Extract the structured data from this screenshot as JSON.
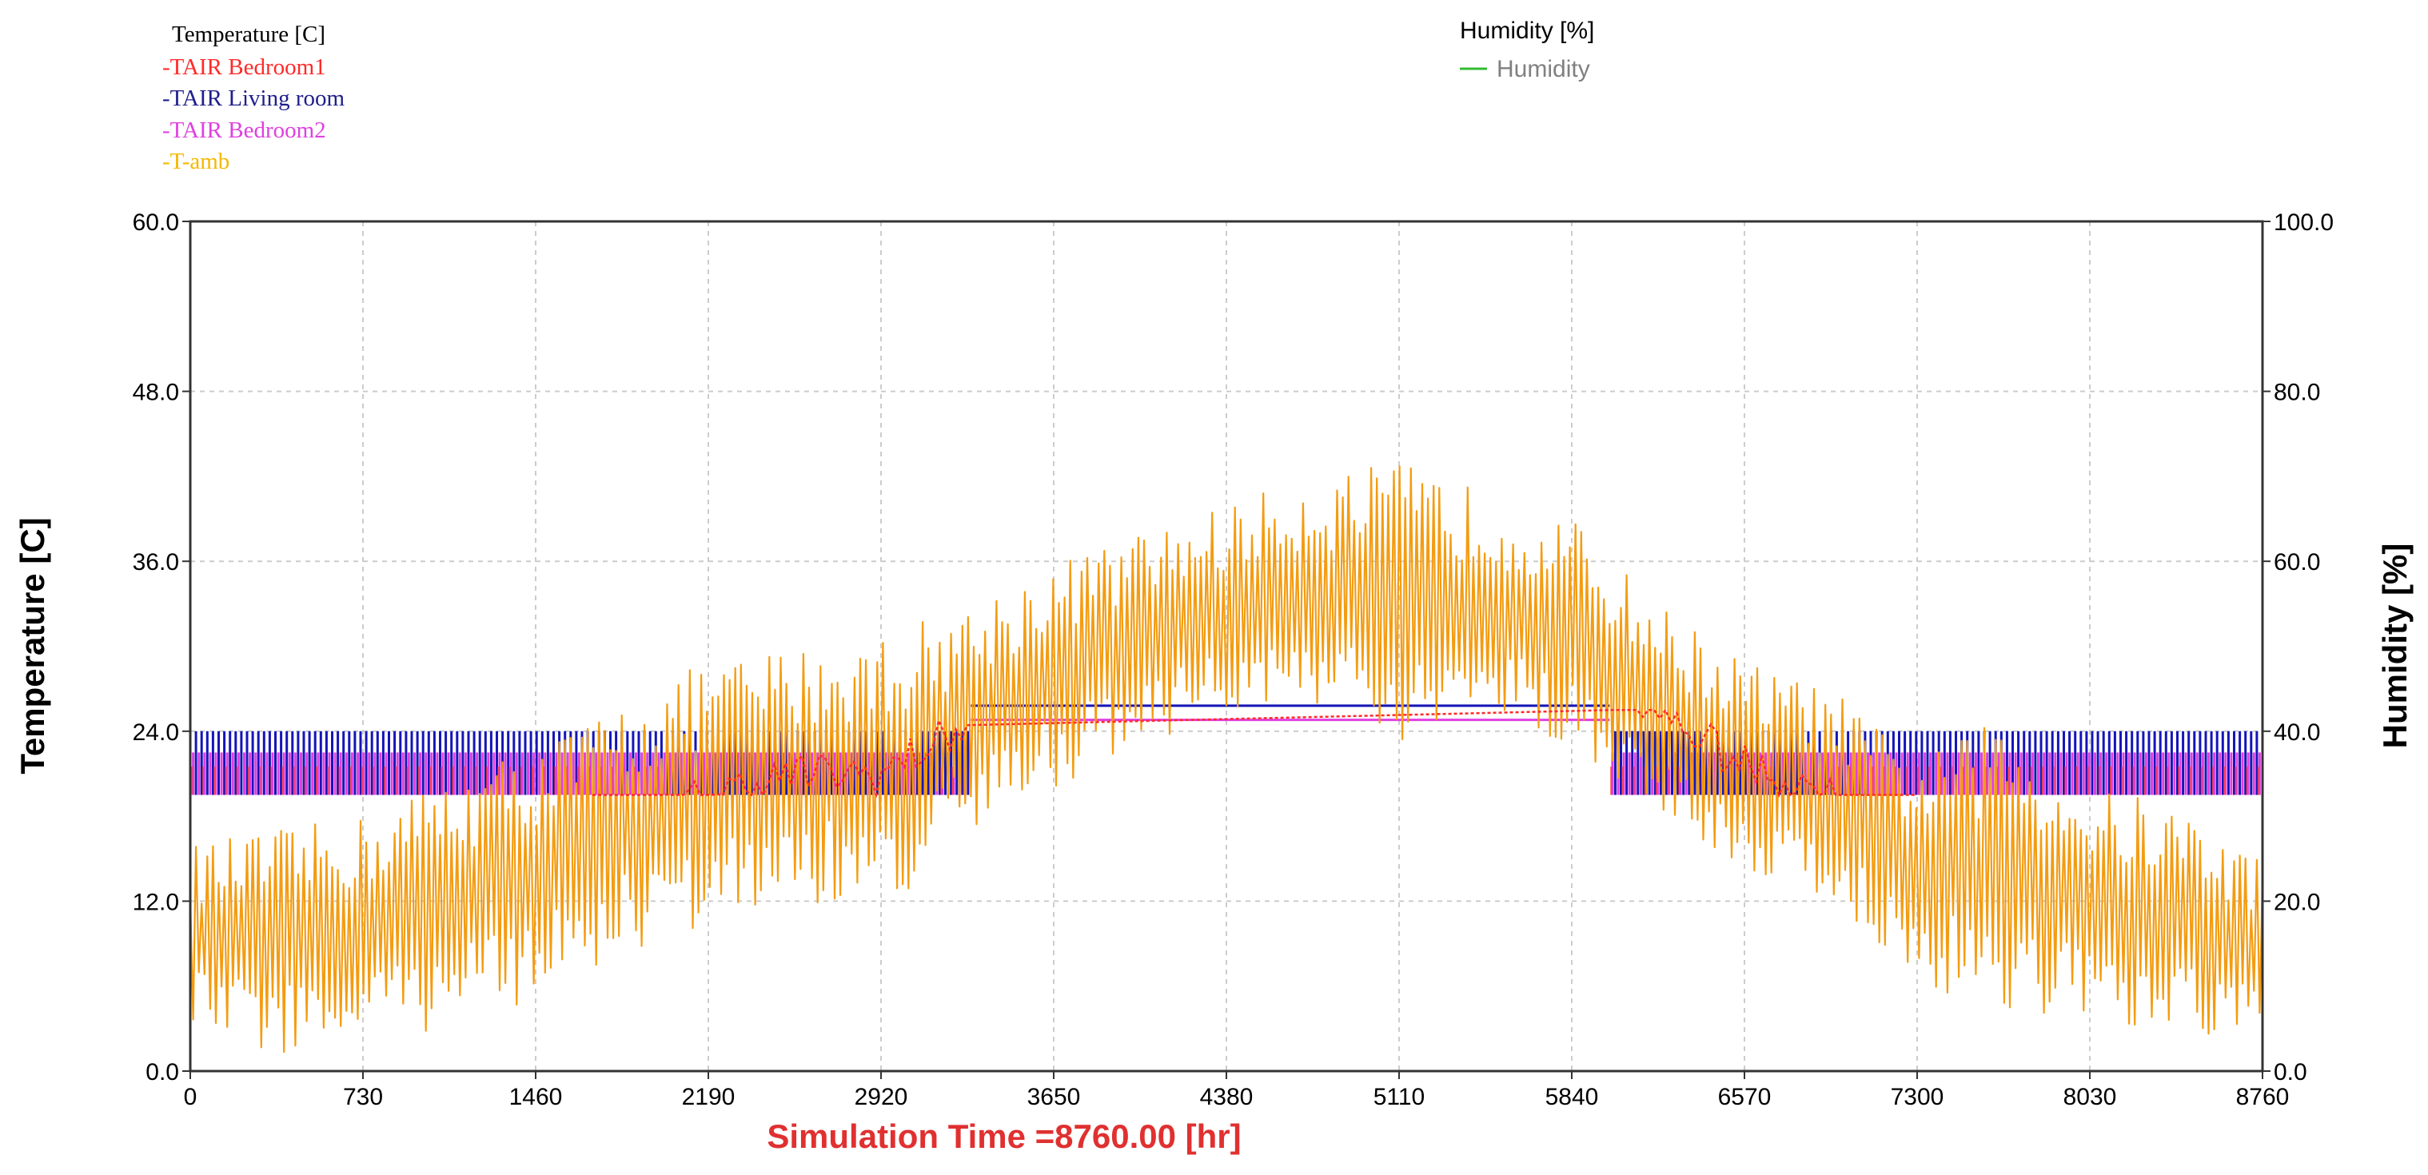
{
  "chart_data": {
    "type": "line",
    "title": "",
    "xlabel": "Simulation Time =8760.00 [hr]",
    "ylabel": "Temperature [C]",
    "y2label": "Humidity [%]",
    "xlim": [
      0,
      8760
    ],
    "ylim": [
      0,
      60
    ],
    "y2lim": [
      0,
      100
    ],
    "xticks": [
      "0",
      "730",
      "1460",
      "2190",
      "2920",
      "3650",
      "4380",
      "5110",
      "5840",
      "6570",
      "7300",
      "8030",
      "8760"
    ],
    "yticks": [
      "0.0",
      "12.0",
      "24.0",
      "36.0",
      "48.0",
      "60.0"
    ],
    "y2ticks": [
      "0.0",
      "20.0",
      "40.0",
      "60.0",
      "80.0",
      "100.0"
    ],
    "grid": true,
    "legend_left": {
      "title": "Temperature [C]",
      "entries": [
        {
          "label": "-TAIR Bedroom1",
          "color": "#ff2a2a"
        },
        {
          "label": "-TAIR Living room",
          "color": "#1e1e8c"
        },
        {
          "label": "-TAIR Bedroom2",
          "color": "#e040e0"
        },
        {
          "label": "-T-amb",
          "color": "#f5b800"
        }
      ]
    },
    "legend_right": {
      "title": "Humidity [%]",
      "entries": [
        {
          "label": "Humidity",
          "color": "#33bb33"
        }
      ]
    },
    "series": [
      {
        "name": "T-amb",
        "color": "#f39c12",
        "axis": "left",
        "envelope_x": [
          0,
          365,
          730,
          1095,
          1460,
          1825,
          2190,
          2555,
          2920,
          3285,
          3650,
          4015,
          4380,
          4745,
          5110,
          5475,
          5840,
          6205,
          6570,
          6935,
          7300,
          7665,
          8030,
          8395,
          8760
        ],
        "envelope_min": [
          3,
          1,
          2,
          3,
          5,
          8,
          10,
          12,
          11,
          16,
          20,
          23,
          25,
          26,
          22,
          25,
          23,
          18,
          14,
          12,
          6,
          4,
          3,
          2,
          2
        ],
        "envelope_max": [
          16,
          17,
          18,
          21,
          23,
          26,
          29,
          30,
          31,
          33,
          36,
          38,
          40,
          42,
          43,
          41,
          39,
          33,
          29,
          27,
          22,
          25,
          20,
          19,
          15
        ]
      },
      {
        "name": "TAIR Living room",
        "color": "#1515b8",
        "axis": "left",
        "description_values": {
          "heating_band": [
            19.5,
            24.0
          ],
          "summer_setpoint": 25.8,
          "summer_start": 3300,
          "summer_end": 6000
        }
      },
      {
        "name": "TAIR Bedroom2",
        "color": "#e040e0",
        "axis": "left",
        "description_values": {
          "heating_band": [
            19.5,
            22.5
          ],
          "summer_setpoint": 24.8
        }
      },
      {
        "name": "TAIR Bedroom1",
        "color": "#ff2a2a",
        "axis": "left",
        "description_values": {
          "heating_band": [
            19.5,
            21.5
          ]
        }
      }
    ]
  }
}
